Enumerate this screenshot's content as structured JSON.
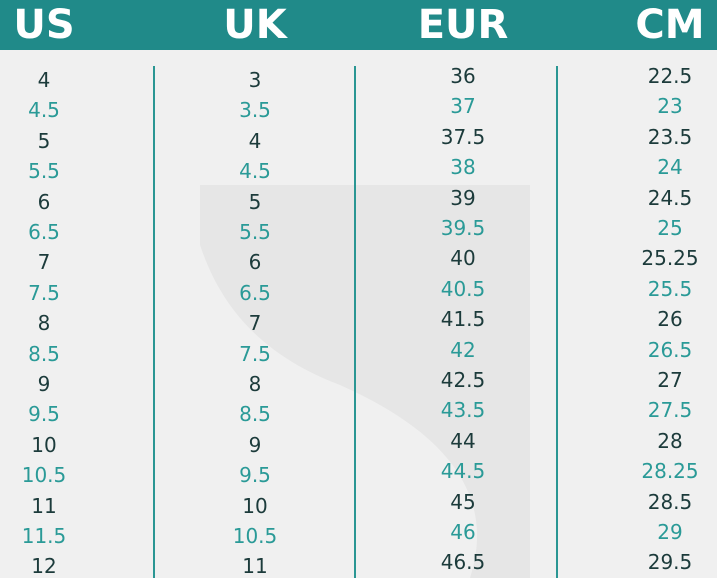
{
  "table": {
    "headers": [
      "US",
      "UK",
      "EUR",
      "CM"
    ],
    "rows": [
      [
        "4",
        "3",
        "36",
        "22.5"
      ],
      [
        "4.5",
        "3.5",
        "37",
        "23"
      ],
      [
        "5",
        "4",
        "37.5",
        "23.5"
      ],
      [
        "5.5",
        "4.5",
        "38",
        "24"
      ],
      [
        "6",
        "5",
        "39",
        "24.5"
      ],
      [
        "6.5",
        "5.5",
        "39.5",
        "25"
      ],
      [
        "7",
        "6",
        "40",
        "25.25"
      ],
      [
        "7.5",
        "6.5",
        "40.5",
        "25.5"
      ],
      [
        "8",
        "7",
        "41.5",
        "26"
      ],
      [
        "8.5",
        "7.5",
        "42",
        "26.5"
      ],
      [
        "9",
        "8",
        "42.5",
        "27"
      ],
      [
        "9.5",
        "8.5",
        "43.5",
        "27.5"
      ],
      [
        "10",
        "9",
        "44",
        "28"
      ],
      [
        "10.5",
        "9.5",
        "44.5",
        "28.25"
      ],
      [
        "11",
        "10",
        "45",
        "28.5"
      ],
      [
        "11.5",
        "10.5",
        "46",
        "29"
      ],
      [
        "12",
        "11",
        "46.5",
        "29.5"
      ]
    ]
  }
}
